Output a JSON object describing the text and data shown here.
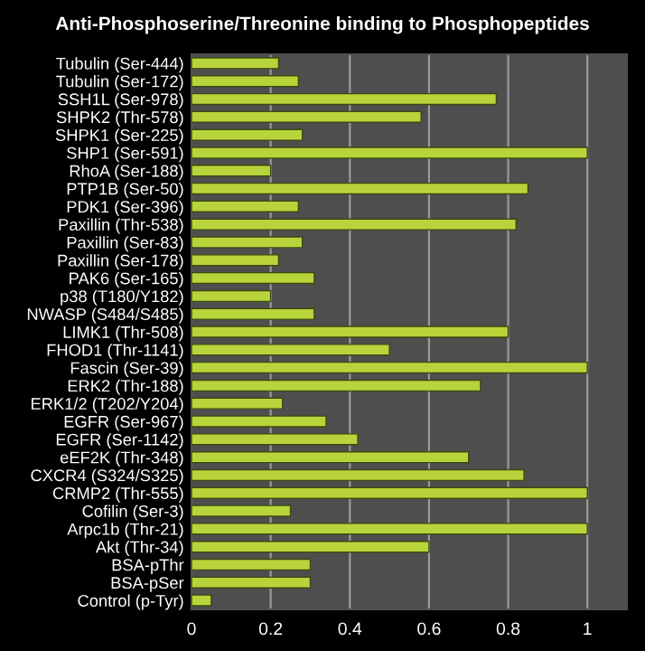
{
  "chart_data": {
    "type": "bar",
    "orientation": "horizontal",
    "title": "Anti-Phosphoserine/Threonine binding to Phosphopeptides",
    "categories": [
      "Tubulin (Ser-444)",
      "Tubulin (Ser-172)",
      "SSH1L (Ser-978)",
      "SHPK2 (Thr-578)",
      "SHPK1 (Ser-225)",
      "SHP1 (Ser-591)",
      "RhoA (Ser-188)",
      "PTP1B (Ser-50)",
      "PDK1 (Ser-396)",
      "Paxillin (Thr-538)",
      "Paxillin (Ser-83)",
      "Paxillin (Ser-178)",
      "PAK6 (Ser-165)",
      "p38 (T180/Y182)",
      "NWASP (S484/S485)",
      "LIMK1 (Thr-508)",
      "FHOD1 (Thr-1141)",
      "Fascin (Ser-39)",
      "ERK2 (Thr-188)",
      "ERK1/2 (T202/Y204)",
      "EGFR (Ser-967)",
      "EGFR (Ser-1142)",
      "eEF2K (Thr-348)",
      "CXCR4 (S324/S325)",
      "CRMP2 (Thr-555)",
      "Cofilin (Ser-3)",
      "Arpc1b (Thr-21)",
      "Akt (Thr-34)",
      "BSA-pThr",
      "BSA-pSer",
      "Control (p-Tyr)"
    ],
    "values": [
      0.22,
      0.27,
      0.77,
      0.58,
      0.28,
      1.0,
      0.2,
      0.85,
      0.27,
      0.82,
      0.28,
      0.22,
      0.31,
      0.2,
      0.31,
      0.8,
      0.5,
      1.0,
      0.73,
      0.23,
      0.34,
      0.42,
      0.7,
      0.84,
      1.0,
      0.25,
      1.0,
      0.6,
      0.3,
      0.3,
      0.05
    ],
    "color": "#b8d43a",
    "xlim": [
      0,
      1.1
    ],
    "xticks": [
      0,
      0.2,
      0.4,
      0.6,
      0.8,
      1
    ],
    "grid": "x"
  }
}
